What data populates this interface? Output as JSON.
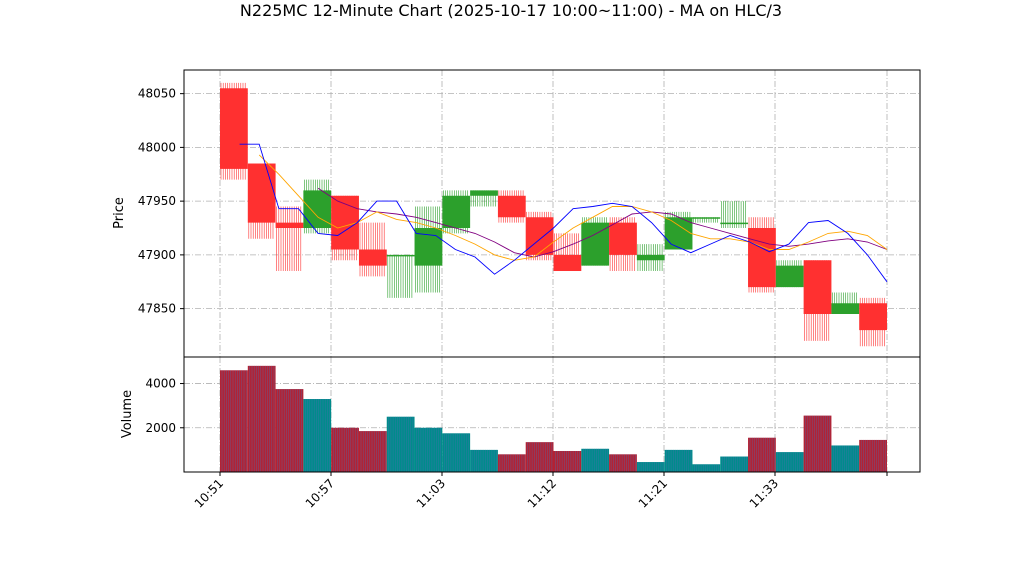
{
  "chart_data": {
    "type": "candlestick",
    "title": "N225MC 12-Minute Chart (2025-10-17 10:00~11:00) - MA on HLC/3",
    "price_panel": {
      "ylabel": "Price",
      "ylim": [
        47805,
        48072
      ],
      "yticks": [
        47850,
        47900,
        47950,
        48000,
        48050
      ],
      "grid": true
    },
    "volume_panel": {
      "ylabel": "Volume",
      "ylim": [
        0,
        5200
      ],
      "yticks": [
        2000,
        4000
      ],
      "grid": true
    },
    "xticks": [
      "10:51",
      "10:57",
      "11:03",
      "11:12",
      "11:21",
      "11:33"
    ],
    "colors": {
      "up": "#2ca02c",
      "down": "#ff3030",
      "ma_short": "#0000ff",
      "ma_mid": "#ffa500",
      "ma_long": "#800080",
      "volume_up": "#008b8b",
      "volume_down": "#b22234"
    },
    "candles": [
      {
        "open": 48055,
        "high": 48060,
        "low": 47970,
        "close": 47980,
        "volume": 4600
      },
      {
        "open": 47985,
        "high": 47985,
        "low": 47915,
        "close": 47930,
        "volume": 4800
      },
      {
        "open": 47930,
        "high": 47945,
        "low": 47885,
        "close": 47925,
        "volume": 3750
      },
      {
        "open": 47925,
        "high": 47970,
        "low": 47920,
        "close": 47960,
        "volume": 3300
      },
      {
        "open": 47955,
        "high": 47955,
        "low": 47895,
        "close": 47905,
        "volume": 2000
      },
      {
        "open": 47905,
        "high": 47930,
        "low": 47880,
        "close": 47890,
        "volume": 1850
      },
      {
        "open": 47900,
        "high": 47900,
        "low": 47860,
        "close": 47900,
        "volume": 2500
      },
      {
        "open": 47890,
        "high": 47945,
        "low": 47865,
        "close": 47925,
        "volume": 2000
      },
      {
        "open": 47925,
        "high": 47960,
        "low": 47920,
        "close": 47955,
        "volume": 1750
      },
      {
        "open": 47955,
        "high": 47960,
        "low": 47945,
        "close": 47960,
        "volume": 1000
      },
      {
        "open": 47955,
        "high": 47960,
        "low": 47930,
        "close": 47935,
        "volume": 800
      },
      {
        "open": 47935,
        "high": 47940,
        "low": 47895,
        "close": 47900,
        "volume": 1350
      },
      {
        "open": 47900,
        "high": 47920,
        "low": 47885,
        "close": 47885,
        "volume": 950
      },
      {
        "open": 47890,
        "high": 47935,
        "low": 47890,
        "close": 47930,
        "volume": 1050
      },
      {
        "open": 47930,
        "high": 47935,
        "low": 47885,
        "close": 47900,
        "volume": 800
      },
      {
        "open": 47895,
        "high": 47910,
        "low": 47885,
        "close": 47900,
        "volume": 450
      },
      {
        "open": 47905,
        "high": 47940,
        "low": 47905,
        "close": 47935,
        "volume": 1000
      },
      {
        "open": 47935,
        "high": 47935,
        "low": 47930,
        "close": 47935,
        "volume": 350
      },
      {
        "open": 47930,
        "high": 47950,
        "low": 47925,
        "close": 47930,
        "volume": 700
      },
      {
        "open": 47925,
        "high": 47935,
        "low": 47865,
        "close": 47870,
        "volume": 1550
      },
      {
        "open": 47870,
        "high": 47895,
        "low": 47870,
        "close": 47890,
        "volume": 900
      },
      {
        "open": 47895,
        "high": 47895,
        "low": 47820,
        "close": 47845,
        "volume": 2550
      },
      {
        "open": 47845,
        "high": 47865,
        "low": 47845,
        "close": 47855,
        "volume": 1200
      },
      {
        "open": 47855,
        "high": 47860,
        "low": 47815,
        "close": 47830,
        "volume": 1450
      }
    ],
    "ma_short": [
      [
        1,
        48003
      ],
      [
        2,
        48003
      ],
      [
        3,
        47943
      ],
      [
        4,
        47943
      ],
      [
        5,
        47920
      ],
      [
        6,
        47918
      ],
      [
        7,
        47930
      ],
      [
        8,
        47950
      ],
      [
        9,
        47950
      ],
      [
        10,
        47920
      ],
      [
        11,
        47918
      ],
      [
        12,
        47905
      ],
      [
        13,
        47898
      ],
      [
        14,
        47882
      ],
      [
        15,
        47895
      ],
      [
        16,
        47910
      ],
      [
        17,
        47925
      ],
      [
        18,
        47943
      ],
      [
        19,
        47945
      ],
      [
        20,
        47948
      ],
      [
        21,
        47945
      ],
      [
        22,
        47930
      ],
      [
        23,
        47910
      ],
      [
        24,
        47902
      ],
      [
        25,
        47910
      ],
      [
        26,
        47918
      ],
      [
        27,
        47912
      ],
      [
        28,
        47903
      ],
      [
        29,
        47910
      ],
      [
        30,
        47930
      ],
      [
        31,
        47932
      ],
      [
        32,
        47920
      ],
      [
        33,
        47900
      ],
      [
        34,
        47875
      ]
    ],
    "ma_mid": [
      [
        2,
        47993
      ],
      [
        3,
        47975
      ],
      [
        4,
        47955
      ],
      [
        5,
        47935
      ],
      [
        6,
        47925
      ],
      [
        7,
        47930
      ],
      [
        8,
        47940
      ],
      [
        9,
        47933
      ],
      [
        10,
        47930
      ],
      [
        11,
        47925
      ],
      [
        12,
        47918
      ],
      [
        13,
        47910
      ],
      [
        14,
        47900
      ],
      [
        15,
        47895
      ],
      [
        16,
        47898
      ],
      [
        17,
        47912
      ],
      [
        18,
        47925
      ],
      [
        19,
        47935
      ],
      [
        20,
        47945
      ],
      [
        21,
        47945
      ],
      [
        22,
        47940
      ],
      [
        23,
        47932
      ],
      [
        24,
        47920
      ],
      [
        25,
        47915
      ],
      [
        26,
        47915
      ],
      [
        27,
        47912
      ],
      [
        28,
        47905
      ],
      [
        29,
        47905
      ],
      [
        30,
        47912
      ],
      [
        31,
        47920
      ],
      [
        32,
        47922
      ],
      [
        33,
        47918
      ],
      [
        34,
        47905
      ]
    ],
    "ma_long": [
      [
        5,
        47962
      ],
      [
        6,
        47950
      ],
      [
        7,
        47943
      ],
      [
        8,
        47940
      ],
      [
        9,
        47938
      ],
      [
        10,
        47935
      ],
      [
        11,
        47930
      ],
      [
        12,
        47925
      ],
      [
        13,
        47920
      ],
      [
        14,
        47912
      ],
      [
        15,
        47902
      ],
      [
        16,
        47898
      ],
      [
        17,
        47903
      ],
      [
        18,
        47910
      ],
      [
        19,
        47918
      ],
      [
        20,
        47928
      ],
      [
        21,
        47938
      ],
      [
        22,
        47940
      ],
      [
        23,
        47938
      ],
      [
        24,
        47930
      ],
      [
        25,
        47925
      ],
      [
        26,
        47920
      ],
      [
        27,
        47915
      ],
      [
        28,
        47910
      ],
      [
        29,
        47908
      ],
      [
        30,
        47910
      ],
      [
        31,
        47913
      ],
      [
        32,
        47915
      ],
      [
        33,
        47912
      ],
      [
        34,
        47905
      ]
    ]
  }
}
